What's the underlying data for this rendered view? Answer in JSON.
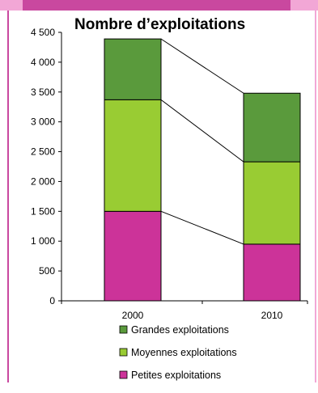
{
  "chart_data": {
    "type": "bar",
    "stacked": true,
    "title": "Nombre d’exploitations",
    "categories": [
      "2000",
      "2010"
    ],
    "series": [
      {
        "name": "Petites exploitations",
        "values": [
          1500,
          950
        ],
        "color": "#cc3399"
      },
      {
        "name": "Moyennes exploitations",
        "values": [
          1870,
          1380
        ],
        "color": "#99cc33"
      },
      {
        "name": "Grandes exploitations",
        "values": [
          1020,
          1150
        ],
        "color": "#5a9a3c"
      }
    ],
    "ylim": [
      0,
      4500
    ],
    "yticks": [
      0,
      500,
      1000,
      1500,
      2000,
      2500,
      3000,
      3500,
      4000,
      4500
    ],
    "ytick_labels": [
      "0",
      "500",
      "1 000",
      "1 500",
      "2 000",
      "2 500",
      "3 000",
      "3 500",
      "4 000",
      "4 500"
    ],
    "legend_order": [
      2,
      1,
      0
    ],
    "legend_position": "bottom",
    "grid": false,
    "connector_lines": true
  }
}
